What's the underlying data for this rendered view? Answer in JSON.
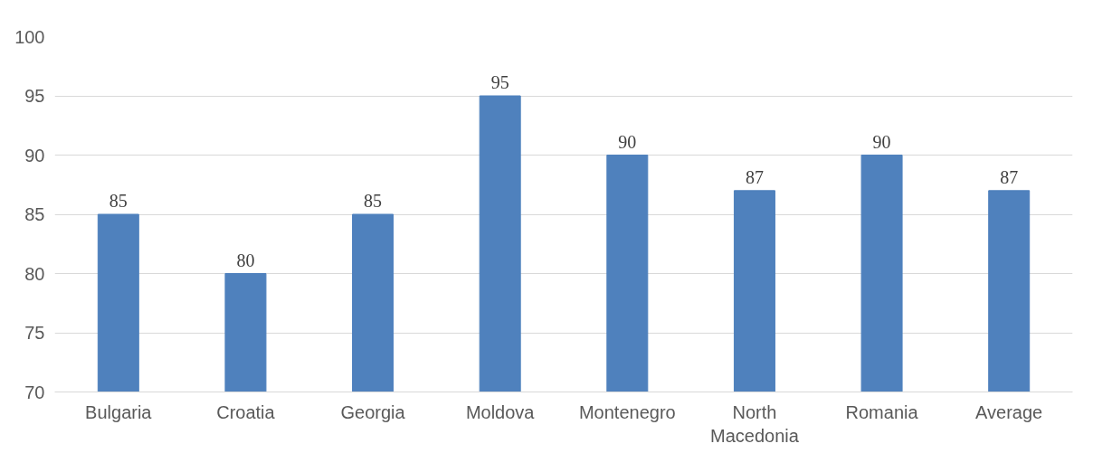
{
  "chart_data": {
    "type": "bar",
    "categories": [
      "Bulgaria",
      "Croatia",
      "Georgia",
      "Moldova",
      "Montenegro",
      "North Macedonia",
      "Romania",
      "Average"
    ],
    "values": [
      85,
      80,
      85,
      95,
      90,
      87,
      90,
      87
    ],
    "color": "#4f81bd",
    "ylim": [
      70,
      100
    ],
    "yticks": [
      70,
      75,
      80,
      85,
      90,
      95,
      100
    ],
    "grid": "y",
    "data_labels": true
  }
}
